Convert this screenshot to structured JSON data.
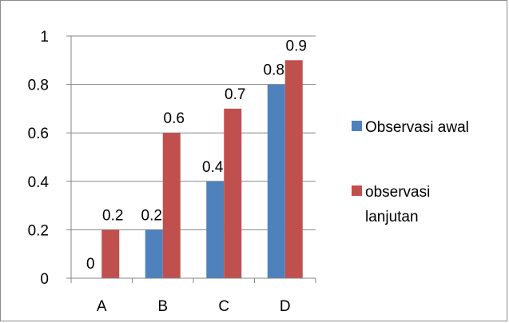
{
  "chart_data": {
    "type": "bar",
    "categories": [
      "A",
      "B",
      "C",
      "D"
    ],
    "series": [
      {
        "name": "Observasi awal",
        "values": [
          0,
          0.2,
          0.4,
          0.8
        ],
        "labels": [
          "0",
          "0.2",
          "0.4",
          "0.8"
        ],
        "color": "#4f81bd"
      },
      {
        "name": "observasi lanjutan",
        "values": [
          0.2,
          0.6,
          0.7,
          0.9
        ],
        "labels": [
          "0.2",
          "0.6",
          "0.7",
          "0.9"
        ],
        "color": "#c0504d"
      }
    ],
    "yticks": [
      "0",
      "0.2",
      "0.4",
      "0.6",
      "0.8",
      "1"
    ],
    "ylim": [
      0,
      1
    ],
    "grid": true,
    "legend_position": "right",
    "legend": [
      {
        "lines": [
          "Observasi awal"
        ]
      },
      {
        "lines": [
          "observasi",
          "lanjutan"
        ]
      }
    ]
  }
}
